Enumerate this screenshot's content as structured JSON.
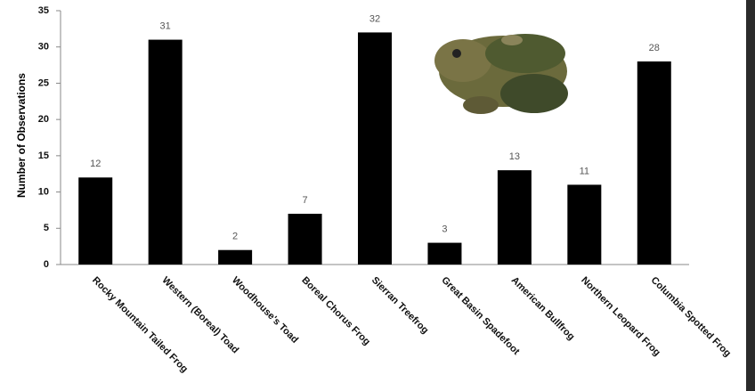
{
  "chart_data": {
    "type": "bar",
    "y_label": "Number of Observations",
    "categories": [
      "Rocky Mountain Tailed Frog",
      "Western (Boreal) Toad",
      "Woodhouse's Toad",
      "Boreal Chorus Frog",
      "Sierran Treefrog",
      "Great Basin Spadefoot",
      "American Bullfrog",
      "Northern Leopard Frog",
      "Columbia Spotted Frog"
    ],
    "values": [
      12,
      31,
      2,
      7,
      32,
      3,
      13,
      11,
      28
    ],
    "color": "#000000",
    "ylim": [
      0,
      35
    ],
    "yticks": [
      0,
      5,
      10,
      15,
      20,
      25,
      30,
      35
    ],
    "grid": false
  }
}
